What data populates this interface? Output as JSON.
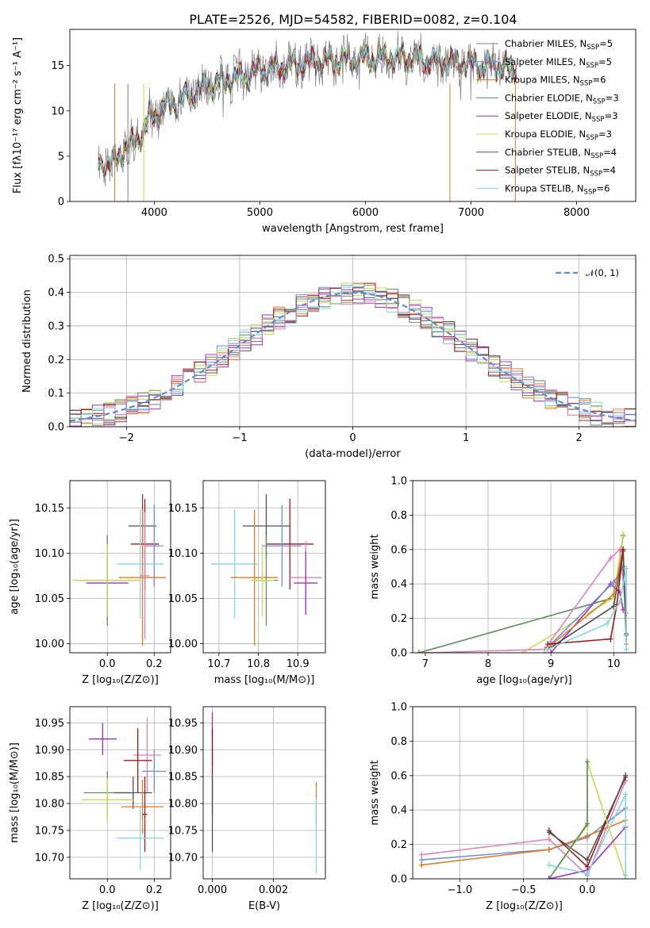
{
  "figure": {
    "title": "PLATE=2526, MJD=54582, FIBERID=0082, z=0.104"
  },
  "colors": {
    "chabrier_miles": "#808080",
    "salpeter_miles": "#6f8fd8",
    "kroupa_miles": "#e07b22",
    "chabrier_elodie": "#5d8a5d",
    "salpeter_elodie": "#a030c0",
    "kroupa_elodie": "#c8d850",
    "chabrier_stelib": "#505050",
    "salpeter_stelib": "#a01818",
    "kroupa_stelib": "#80d8e0",
    "extra_pink": "#e080b8",
    "normal_dash": "#5a8fd8"
  },
  "chart_data": [
    {
      "id": "spectrum",
      "type": "line",
      "title": "PLATE=2526, MJD=54582, FIBERID=0082, z=0.104",
      "xlabel": "wavelength [Angstrom, rest frame]",
      "ylabel": "Flux [fλ10⁻¹⁷ erg cm⁻² s⁻¹ A⁻¹]",
      "xlim": [
        3200,
        8560
      ],
      "ylim": [
        0,
        19
      ],
      "xticks": [
        4000,
        5000,
        6000,
        7000,
        8000
      ],
      "yticks": [
        0,
        5,
        10,
        15
      ],
      "grid": false,
      "legend_position": "right",
      "continuum": [
        [
          3470,
          4.4
        ],
        [
          3600,
          4.0
        ],
        [
          3700,
          5.6
        ],
        [
          3800,
          6.5
        ],
        [
          3900,
          7.8
        ],
        [
          3950,
          9.2
        ],
        [
          4000,
          9.4
        ],
        [
          4100,
          10.4
        ],
        [
          4200,
          11.0
        ],
        [
          4300,
          11.6
        ],
        [
          4400,
          12.2
        ],
        [
          4500,
          12.7
        ],
        [
          4600,
          13.1
        ],
        [
          4700,
          13.5
        ],
        [
          4800,
          13.7
        ],
        [
          4900,
          14.0
        ],
        [
          5000,
          14.4
        ],
        [
          5200,
          14.8
        ],
        [
          5400,
          15.2
        ],
        [
          5600,
          15.5
        ],
        [
          5800,
          15.6
        ],
        [
          6000,
          15.8
        ],
        [
          6200,
          15.9
        ],
        [
          6400,
          15.8
        ],
        [
          6600,
          15.6
        ],
        [
          6800,
          15.4
        ],
        [
          7000,
          15.2
        ],
        [
          7200,
          15.0
        ],
        [
          7400,
          14.8
        ]
      ],
      "series": [
        {
          "name": "Chabrier MILES, N",
          "sub": "SSP",
          "suffix": "=5",
          "color": "#808080",
          "seed": 1
        },
        {
          "name": "Salpeter MILES, N",
          "sub": "SSP",
          "suffix": "=5",
          "color": "#6f8fd8",
          "seed": 2
        },
        {
          "name": "Kroupa MILES, N",
          "sub": "SSP",
          "suffix": "=6",
          "color": "#e07b22",
          "seed": 3
        },
        {
          "name": "Chabrier ELODIE, N",
          "sub": "SSP",
          "suffix": "=3",
          "color": "#5d8a5d",
          "seed": 4
        },
        {
          "name": "Salpeter ELODIE, N",
          "sub": "SSP",
          "suffix": "=3",
          "color": "#a030c0",
          "seed": 5
        },
        {
          "name": "Kroupa ELODIE, N",
          "sub": "SSP",
          "suffix": "=3",
          "color": "#c8d850",
          "seed": 6
        },
        {
          "name": "Chabrier STELIB, N",
          "sub": "SSP",
          "suffix": "=4",
          "color": "#505050",
          "seed": 7
        },
        {
          "name": "Salpeter STELIB, N",
          "sub": "SSP",
          "suffix": "=4",
          "color": "#a01818",
          "seed": 8
        },
        {
          "name": "Kroupa STELIB, N",
          "sub": "SSP",
          "suffix": "=6",
          "color": "#80d8e0",
          "seed": 9
        }
      ]
    },
    {
      "id": "residuals",
      "type": "histogram",
      "xlabel": "(data-model)/error",
      "ylabel": "Normed distribution",
      "xlim": [
        -2.5,
        2.5
      ],
      "ylim": [
        0,
        0.51
      ],
      "xticks": [
        -2,
        -1,
        0,
        1,
        2
      ],
      "yticks": [
        0.0,
        0.1,
        0.2,
        0.3,
        0.4,
        0.5
      ],
      "grid": true,
      "legend": "𝒩(0, 1)",
      "legend_position": "top-right",
      "bin_width": 0.1,
      "colors": [
        "#808080",
        "#6f8fd8",
        "#e07b22",
        "#5d8a5d",
        "#a030c0",
        "#c8d850",
        "#505050",
        "#a01818",
        "#80d8e0",
        "#e080b8"
      ]
    },
    {
      "id": "age-vs-Z",
      "type": "errorbar",
      "xlabel": "Z [log₁₀(Z/Z⊙)]",
      "ylabel": "age  [log₁₀(age/yr)]",
      "xlim": [
        -0.16,
        0.27
      ],
      "ylim": [
        9.99,
        10.18
      ],
      "xticks": [
        0.0,
        0.2
      ],
      "yticks": [
        10.0,
        10.05,
        10.1,
        10.15
      ],
      "grid": true,
      "points": [
        {
          "x": 0.15,
          "y": 10.13,
          "xe": 0.06,
          "ye": 0.035,
          "c": "#505050"
        },
        {
          "x": 0.16,
          "y": 10.11,
          "xe": 0.06,
          "ye": 0.05,
          "c": "#a01818"
        },
        {
          "x": 0.2,
          "y": 10.108,
          "xe": 0.04,
          "ye": 0.045,
          "c": "#6f8fd8"
        },
        {
          "x": 0.14,
          "y": 10.088,
          "xe": 0.1,
          "ye": 0.06,
          "c": "#80d8e0"
        },
        {
          "x": 0.15,
          "y": 10.073,
          "xe": 0.1,
          "ye": 0.075,
          "c": "#e07b22"
        },
        {
          "x": 0.16,
          "y": 10.075,
          "xe": 0.02,
          "ye": 0.07,
          "c": "#e080b8"
        },
        {
          "x": 0.0,
          "y": 10.07,
          "xe": 0.13,
          "ye": 0.05,
          "c": "#5d8a5d"
        },
        {
          "x": 0.0,
          "y": 10.067,
          "xe": 0.09,
          "ye": 0.035,
          "c": "#a030c0"
        },
        {
          "x": 0.0,
          "y": 10.07,
          "xe": 0.15,
          "ye": 0.04,
          "c": "#c8d850"
        }
      ]
    },
    {
      "id": "age-vs-mass",
      "type": "errorbar",
      "xlabel": "mass [log₁₀(M/M⊙)]",
      "ylabel": "",
      "xlim": [
        10.66,
        10.97
      ],
      "ylim": [
        9.99,
        10.18
      ],
      "xticks": [
        10.7,
        10.8,
        10.9
      ],
      "yticks": [
        10.0,
        10.05,
        10.1,
        10.15
      ],
      "grid": true,
      "points": [
        {
          "x": 10.82,
          "y": 10.13,
          "xe": 0.06,
          "ye": 0.035,
          "c": "#505050"
        },
        {
          "x": 10.88,
          "y": 10.11,
          "xe": 0.06,
          "ye": 0.05,
          "c": "#a01818"
        },
        {
          "x": 10.86,
          "y": 10.108,
          "xe": 0.05,
          "ye": 0.045,
          "c": "#6f8fd8"
        },
        {
          "x": 10.74,
          "y": 10.088,
          "xe": 0.06,
          "ye": 0.06,
          "c": "#80d8e0"
        },
        {
          "x": 10.79,
          "y": 10.073,
          "xe": 0.06,
          "ye": 0.075,
          "c": "#e07b22"
        },
        {
          "x": 10.92,
          "y": 10.073,
          "xe": 0.04,
          "ye": 0.04,
          "c": "#e080b8"
        },
        {
          "x": 10.82,
          "y": 10.07,
          "xe": 0.03,
          "ye": 0.05,
          "c": "#5d8a5d"
        },
        {
          "x": 10.92,
          "y": 10.067,
          "xe": 0.03,
          "ye": 0.035,
          "c": "#a030c0"
        },
        {
          "x": 10.81,
          "y": 10.07,
          "xe": 0.03,
          "ye": 0.04,
          "c": "#c8d850"
        }
      ]
    },
    {
      "id": "weight-vs-age",
      "type": "line",
      "xlabel": "age  [log₁₀(age/yr)]",
      "ylabel": "mass weight",
      "xlim": [
        6.8,
        10.35
      ],
      "ylim": [
        0,
        1.0
      ],
      "xticks": [
        7,
        8,
        9,
        10
      ],
      "yticks": [
        0.0,
        0.2,
        0.4,
        0.6,
        0.8,
        1.0
      ],
      "grid": true,
      "series": [
        {
          "c": "#5d8a5d",
          "pts": [
            [
              6.9,
              0.0
            ],
            [
              10.0,
              0.32
            ],
            [
              10.15,
              0.68
            ]
          ]
        },
        {
          "c": "#c8d850",
          "pts": [
            [
              8.55,
              0.0
            ],
            [
              10.0,
              0.32
            ],
            [
              10.15,
              0.69
            ]
          ]
        },
        {
          "c": "#e080b8",
          "pts": [
            [
              7.0,
              0.0
            ],
            [
              8.9,
              0.02
            ],
            [
              9.95,
              0.55
            ],
            [
              10.1,
              0.6
            ],
            [
              10.2,
              0.23
            ]
          ]
        },
        {
          "c": "#a030c0",
          "pts": [
            [
              9.0,
              0.0
            ],
            [
              9.95,
              0.4
            ],
            [
              10.1,
              0.35
            ],
            [
              10.15,
              0.25
            ]
          ]
        },
        {
          "c": "#6f8fd8",
          "pts": [
            [
              9.0,
              0.05
            ],
            [
              10.0,
              0.41
            ],
            [
              10.15,
              0.5
            ],
            [
              10.2,
              0.1
            ]
          ]
        },
        {
          "c": "#e07b22",
          "pts": [
            [
              8.95,
              0.03
            ],
            [
              10.0,
              0.34
            ],
            [
              10.15,
              0.6
            ],
            [
              10.2,
              0.05
            ]
          ]
        },
        {
          "c": "#505050",
          "pts": [
            [
              8.95,
              0.02
            ],
            [
              10.0,
              0.27
            ],
            [
              10.15,
              0.59
            ],
            [
              10.2,
              0.11
            ]
          ]
        },
        {
          "c": "#a01818",
          "pts": [
            [
              8.95,
              0.05
            ],
            [
              9.95,
              0.08
            ],
            [
              10.05,
              0.28
            ],
            [
              10.15,
              0.6
            ]
          ]
        },
        {
          "c": "#80d8e0",
          "pts": [
            [
              8.95,
              0.02
            ],
            [
              9.9,
              0.17
            ],
            [
              10.1,
              0.3
            ],
            [
              10.2,
              0.49
            ],
            [
              10.2,
              0.02
            ]
          ]
        }
      ]
    },
    {
      "id": "mass-vs-Z",
      "type": "errorbar",
      "xlabel": "Z [log₁₀(Z/Z⊙)]",
      "ylabel": "mass [log₁₀(M/M⊙)]",
      "xlim": [
        -0.16,
        0.27
      ],
      "ylim": [
        10.66,
        10.98
      ],
      "xticks": [
        0.0,
        0.2
      ],
      "yticks": [
        10.7,
        10.75,
        10.8,
        10.85,
        10.9,
        10.95
      ],
      "grid": true,
      "points": [
        {
          "x": -0.02,
          "y": 10.92,
          "xe": 0.06,
          "ye": 0.03,
          "c": "#a030c0"
        },
        {
          "x": 0.17,
          "y": 10.89,
          "xe": 0.06,
          "ye": 0.07,
          "c": "#e080b8"
        },
        {
          "x": 0.13,
          "y": 10.88,
          "xe": 0.06,
          "ye": 0.06,
          "c": "#a01818"
        },
        {
          "x": 0.2,
          "y": 10.86,
          "xe": 0.05,
          "ye": 0.04,
          "c": "#6f8fd8"
        },
        {
          "x": 0.0,
          "y": 10.82,
          "xe": 0.1,
          "ye": 0.04,
          "c": "#5d8a5d"
        },
        {
          "x": 0.11,
          "y": 10.82,
          "xe": 0.08,
          "ye": 0.03,
          "c": "#505050"
        },
        {
          "x": 0.0,
          "y": 10.807,
          "xe": 0.11,
          "ye": 0.04,
          "c": "#c8d850"
        },
        {
          "x": 0.15,
          "y": 10.794,
          "xe": 0.09,
          "ye": 0.05,
          "c": "#e07b22"
        },
        {
          "x": 0.16,
          "y": 10.78,
          "xe": 0.01,
          "ye": 0.07,
          "c": "#a01818"
        },
        {
          "x": 0.14,
          "y": 10.736,
          "xe": 0.1,
          "ye": 0.06,
          "c": "#80d8e0"
        }
      ]
    },
    {
      "id": "mass-vs-EBV",
      "type": "errorbar",
      "xlabel": "E(B-V)",
      "ylabel": "",
      "xlim": [
        -0.0003,
        0.0037
      ],
      "ylim": [
        10.66,
        10.98
      ],
      "xticks": [
        0.0,
        0.002
      ],
      "yticks": [
        10.7,
        10.75,
        10.8,
        10.85,
        10.9,
        10.95
      ],
      "grid": true,
      "points": [
        {
          "x": 0.0,
          "y": 10.92,
          "xe": 1e-05,
          "ye": 0.05,
          "c": "#a030c0"
        },
        {
          "x": 0.0,
          "y": 10.86,
          "xe": 1e-05,
          "ye": 0.08,
          "c": "#a01818"
        },
        {
          "x": 0.0,
          "y": 10.78,
          "xe": 1e-05,
          "ye": 0.07,
          "c": "#505050"
        },
        {
          "x": 0.0034,
          "y": 10.8,
          "xe": 1e-05,
          "ye": 0.04,
          "c": "#e07b22"
        },
        {
          "x": 0.0034,
          "y": 10.74,
          "xe": 1e-05,
          "ye": 0.07,
          "c": "#80d8e0"
        }
      ]
    },
    {
      "id": "weight-vs-Z",
      "type": "line",
      "xlabel": "Z [log₁₀(Z/Z⊙)]",
      "ylabel": "mass weight",
      "xlim": [
        -1.37,
        0.38
      ],
      "ylim": [
        0,
        1.0
      ],
      "xticks": [
        -1.0,
        -0.5,
        0.0
      ],
      "yticks": [
        0.0,
        0.2,
        0.4,
        0.6,
        0.8,
        1.0
      ],
      "grid": true,
      "series": [
        {
          "c": "#e080b8",
          "pts": [
            [
              -1.3,
              0.14
            ],
            [
              -0.3,
              0.23
            ],
            [
              0.0,
              0.02
            ],
            [
              0.3,
              0.57
            ]
          ]
        },
        {
          "c": "#6f8fd8",
          "pts": [
            [
              -1.3,
              0.11
            ],
            [
              -0.3,
              0.17
            ],
            [
              0.0,
              0.24
            ],
            [
              0.3,
              0.41
            ]
          ]
        },
        {
          "c": "#e07b22",
          "pts": [
            [
              -1.3,
              0.08
            ],
            [
              -0.3,
              0.17
            ],
            [
              0.0,
              0.25
            ],
            [
              0.3,
              0.34
            ]
          ]
        },
        {
          "c": "#a01818",
          "pts": [
            [
              -0.3,
              0.28
            ],
            [
              0.0,
              0.07
            ],
            [
              0.3,
              0.6
            ]
          ]
        },
        {
          "c": "#505050",
          "pts": [
            [
              -0.3,
              0.27
            ],
            [
              0.0,
              0.11
            ],
            [
              0.3,
              0.59
            ]
          ]
        },
        {
          "c": "#c8d850",
          "pts": [
            [
              -0.3,
              0.0
            ],
            [
              0.0,
              0.31
            ],
            [
              0.0,
              0.68
            ],
            [
              0.3,
              0.0
            ]
          ]
        },
        {
          "c": "#5d8a5d",
          "pts": [
            [
              -0.3,
              0.0
            ],
            [
              0.0,
              0.32
            ],
            [
              0.0,
              0.68
            ]
          ]
        },
        {
          "c": "#a030c0",
          "pts": [
            [
              -0.3,
              0.0
            ],
            [
              0.0,
              0.05
            ],
            [
              0.3,
              0.3
            ]
          ]
        },
        {
          "c": "#80d8e0",
          "pts": [
            [
              -0.3,
              0.08
            ],
            [
              0.0,
              0.03
            ],
            [
              0.3,
              0.49
            ],
            [
              0.3,
              0.02
            ]
          ]
        }
      ]
    }
  ]
}
